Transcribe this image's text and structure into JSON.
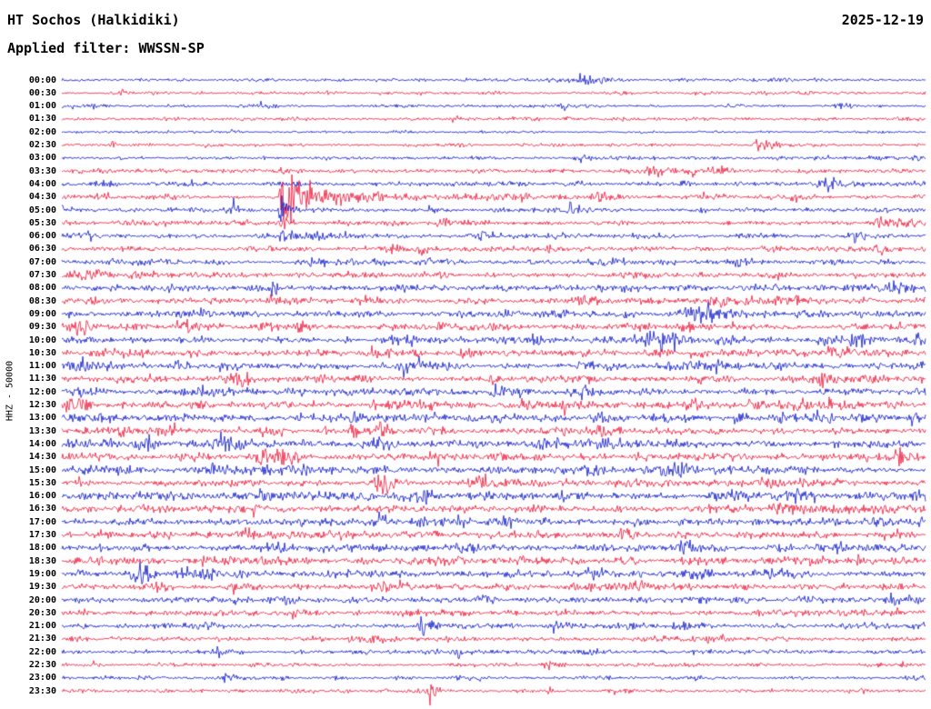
{
  "header": {
    "station": "HT Sochos (Halkidiki)",
    "date": "2025-12-19",
    "filter_line": "Applied filter: WWSSN-SP"
  },
  "chart_data": {
    "type": "line",
    "subtype": "helicorder-seismogram",
    "title": "HT Sochos (Halkidiki)",
    "date": "2025-12-19",
    "filter": "WWSSN-SP",
    "channel_scale": "HHZ - 50000",
    "x_axis": {
      "minutes_per_line": 30,
      "lines": 48,
      "start": "00:00",
      "end": "24:00"
    },
    "legend": "alternating trace colors per half-hour line",
    "colors": {
      "blue": "#0a14c8",
      "red": "#ee1437",
      "text": "#000000",
      "background": "#ffffff"
    },
    "event_format": [
      "x_fraction_of_line",
      "peak_amplitude_px",
      "rise_px",
      "decay_px"
    ],
    "notable_events": [
      {
        "line": "00:00",
        "x": 0.602,
        "desc": "small local event"
      },
      {
        "line": "02:30",
        "x": 0.807,
        "desc": "small burst"
      },
      {
        "line": "04:30",
        "x": 0.255,
        "desc": "large clipped event with long coda"
      },
      {
        "line": "05:00",
        "x": 0.255,
        "desc": "aftershock spike"
      },
      {
        "line": "09:00",
        "x": 0.739,
        "desc": "emergent burst"
      },
      {
        "line": "21:00",
        "x": 0.418,
        "desc": "sharp spike"
      },
      {
        "line": "23:30",
        "x": 0.428,
        "desc": "sharp spike"
      }
    ],
    "rows": [
      {
        "t": "00:00",
        "c": "blue",
        "n": 1.6,
        "e": [
          [
            0.602,
            10,
            3,
            20
          ]
        ]
      },
      {
        "t": "00:30",
        "c": "red",
        "n": 1.6,
        "e": [
          [
            0.065,
            4,
            4,
            10
          ]
        ]
      },
      {
        "t": "01:00",
        "c": "blue",
        "n": 1.6,
        "e": [
          [
            0.58,
            3.5,
            4,
            10
          ]
        ]
      },
      {
        "t": "01:30",
        "c": "red",
        "n": 1.7,
        "e": [
          [
            0.455,
            3,
            4,
            8
          ],
          [
            0.585,
            3,
            3,
            8
          ]
        ]
      },
      {
        "t": "02:00",
        "c": "blue",
        "n": 1.4,
        "e": [
          [
            0.39,
            2.5,
            3,
            8
          ]
        ]
      },
      {
        "t": "02:30",
        "c": "red",
        "n": 1.7,
        "e": [
          [
            0.807,
            8,
            3,
            16
          ],
          [
            0.06,
            3,
            3,
            8
          ]
        ]
      },
      {
        "t": "03:00",
        "c": "blue",
        "n": 2.0,
        "e": [
          [
            0.6,
            3.5,
            4,
            10
          ]
        ]
      },
      {
        "t": "03:30",
        "c": "red",
        "n": 2.4,
        "e": [
          [
            0.255,
            4,
            4,
            10
          ],
          [
            0.685,
            5,
            5,
            14
          ],
          [
            0.73,
            4,
            4,
            10
          ]
        ]
      },
      {
        "t": "04:00",
        "c": "blue",
        "n": 2.6,
        "e": [
          [
            0.885,
            7,
            8,
            18
          ],
          [
            0.72,
            4,
            4,
            10
          ]
        ]
      },
      {
        "t": "04:30",
        "c": "red",
        "n": 2.6,
        "e": [
          [
            0.255,
            52,
            2,
            14
          ],
          [
            0.275,
            10,
            8,
            90
          ],
          [
            0.62,
            5,
            5,
            12
          ],
          [
            0.85,
            4,
            4,
            10
          ]
        ]
      },
      {
        "t": "05:00",
        "c": "blue",
        "n": 2.8,
        "e": [
          [
            0.255,
            24,
            2,
            6
          ],
          [
            0.59,
            6,
            4,
            10
          ],
          [
            0.2,
            5,
            4,
            10
          ]
        ]
      },
      {
        "t": "05:30",
        "c": "red",
        "n": 2.9,
        "e": [
          [
            0.118,
            4,
            4,
            8
          ],
          [
            0.255,
            7,
            2,
            6
          ],
          [
            0.944,
            5,
            4,
            10
          ]
        ]
      },
      {
        "t": "06:00",
        "c": "blue",
        "n": 2.9,
        "e": [
          [
            0.03,
            4,
            3,
            8
          ],
          [
            0.255,
            6,
            2,
            5
          ],
          [
            0.486,
            4,
            3,
            8
          ],
          [
            0.918,
            5,
            4,
            10
          ]
        ]
      },
      {
        "t": "06:30",
        "c": "red",
        "n": 3.0,
        "e": [
          [
            0.381,
            6,
            5,
            12
          ],
          [
            0.565,
            4,
            4,
            8
          ],
          [
            0.944,
            6,
            4,
            10
          ]
        ]
      },
      {
        "t": "07:00",
        "c": "blue",
        "n": 3.0,
        "e": [
          [
            0.055,
            4,
            4,
            8
          ],
          [
            0.292,
            4,
            4,
            8
          ],
          [
            0.79,
            5,
            4,
            10
          ]
        ]
      },
      {
        "t": "07:30",
        "c": "red",
        "n": 3.2,
        "e": [
          [
            0.013,
            4,
            4,
            8
          ],
          [
            0.823,
            5,
            4,
            10
          ]
        ]
      },
      {
        "t": "08:00",
        "c": "blue",
        "n": 3.6,
        "e": [
          [
            0.244,
            5,
            4,
            10
          ],
          [
            0.96,
            7,
            6,
            14
          ]
        ]
      },
      {
        "t": "08:30",
        "c": "red",
        "n": 3.9,
        "e": [
          [
            0.039,
            5,
            4,
            8
          ],
          [
            0.244,
            5,
            4,
            8
          ],
          [
            0.35,
            5,
            4,
            8
          ]
        ]
      },
      {
        "t": "09:00",
        "c": "blue",
        "n": 3.9,
        "e": [
          [
            0.739,
            11,
            10,
            26
          ],
          [
            0.655,
            5,
            4,
            8
          ]
        ]
      },
      {
        "t": "09:30",
        "c": "red",
        "n": 3.9,
        "e": [
          [
            0.139,
            6,
            4,
            10
          ]
        ]
      },
      {
        "t": "10:00",
        "c": "blue",
        "n": 4.2,
        "e": [
          [
            0.544,
            6,
            4,
            10
          ],
          [
            0.686,
            6,
            4,
            10
          ],
          [
            0.77,
            6,
            4,
            10
          ]
        ]
      },
      {
        "t": "10:30",
        "c": "red",
        "n": 4.2,
        "e": [
          [
            0.365,
            6,
            4,
            10
          ],
          [
            0.465,
            6,
            4,
            10
          ],
          [
            0.891,
            5,
            4,
            10
          ]
        ]
      },
      {
        "t": "11:00",
        "c": "blue",
        "n": 4.2,
        "e": [
          [
            0.397,
            7,
            4,
            10
          ],
          [
            0.602,
            5,
            4,
            10
          ]
        ]
      },
      {
        "t": "11:30",
        "c": "red",
        "n": 4.2,
        "e": [
          [
            0.497,
            5,
            4,
            10
          ],
          [
            0.881,
            5,
            4,
            10
          ]
        ]
      },
      {
        "t": "12:00",
        "c": "blue",
        "n": 4.2,
        "e": [
          [
            0.16,
            5,
            4,
            10
          ],
          [
            0.502,
            6,
            4,
            10
          ]
        ]
      },
      {
        "t": "12:30",
        "c": "red",
        "n": 4.4,
        "e": [
          [
            0.36,
            6,
            4,
            10
          ],
          [
            0.728,
            6,
            4,
            10
          ],
          [
            0.802,
            7,
            4,
            10
          ],
          [
            0.891,
            6,
            4,
            10
          ]
        ]
      },
      {
        "t": "13:00",
        "c": "blue",
        "n": 4.4,
        "e": [
          [
            0.339,
            6,
            4,
            10
          ],
          [
            0.781,
            6,
            4,
            10
          ],
          [
            0.834,
            5,
            4,
            10
          ]
        ]
      },
      {
        "t": "13:30",
        "c": "red",
        "n": 4.2,
        "e": [
          [
            0.234,
            5,
            4,
            10
          ],
          [
            0.334,
            6,
            4,
            10
          ]
        ]
      },
      {
        "t": "14:00",
        "c": "blue",
        "n": 4.4,
        "e": [
          [
            0.186,
            7,
            4,
            12
          ]
        ]
      },
      {
        "t": "14:30",
        "c": "red",
        "n": 4.4,
        "e": [
          [
            0.965,
            6,
            4,
            10
          ]
        ]
      },
      {
        "t": "15:00",
        "c": "blue",
        "n": 4.4,
        "e": [
          [
            0.176,
            7,
            4,
            12
          ],
          [
            0.613,
            6,
            4,
            10
          ],
          [
            0.692,
            6,
            4,
            10
          ]
        ]
      },
      {
        "t": "15:30",
        "c": "red",
        "n": 4.2,
        "e": [
          [
            0.371,
            6,
            4,
            10
          ],
          [
            0.813,
            6,
            4,
            10
          ]
        ]
      },
      {
        "t": "16:00",
        "c": "blue",
        "n": 4.4,
        "e": [
          [
            0.413,
            7,
            4,
            12
          ],
          [
            0.581,
            6,
            4,
            10
          ],
          [
            0.75,
            6,
            4,
            10
          ]
        ]
      },
      {
        "t": "16:30",
        "c": "red",
        "n": 4.2,
        "e": [
          [
            0.855,
            6,
            4,
            10
          ]
        ]
      },
      {
        "t": "17:00",
        "c": "blue",
        "n": 4.2,
        "e": [
          [
            0.413,
            6,
            4,
            10
          ],
          [
            0.518,
            5,
            4,
            10
          ]
        ]
      },
      {
        "t": "17:30",
        "c": "red",
        "n": 4.2,
        "e": [
          [
            0.207,
            6,
            4,
            10
          ],
          [
            0.65,
            7,
            4,
            12
          ]
        ]
      },
      {
        "t": "18:00",
        "c": "blue",
        "n": 4.2,
        "e": [
          [
            0.244,
            6,
            4,
            10
          ],
          [
            0.718,
            6,
            4,
            10
          ],
          [
            0.897,
            6,
            4,
            10
          ]
        ]
      },
      {
        "t": "18:30",
        "c": "red",
        "n": 3.9,
        "e": [
          [
            0.018,
            5,
            4,
            10
          ]
        ]
      },
      {
        "t": "19:00",
        "c": "blue",
        "n": 3.9,
        "e": [
          [
            0.086,
            6,
            4,
            10
          ],
          [
            0.518,
            5,
            4,
            10
          ],
          [
            0.613,
            6,
            4,
            10
          ]
        ]
      },
      {
        "t": "19:30",
        "c": "red",
        "n": 3.6,
        "e": [
          [
            0.392,
            5,
            4,
            10
          ]
        ]
      },
      {
        "t": "20:00",
        "c": "blue",
        "n": 3.4,
        "e": [
          [
            0.486,
            6,
            4,
            10
          ],
          [
            0.96,
            6,
            4,
            10
          ]
        ]
      },
      {
        "t": "20:30",
        "c": "red",
        "n": 3.2,
        "e": [
          [
            0.186,
            5,
            4,
            10
          ],
          [
            0.265,
            5,
            4,
            10
          ]
        ]
      },
      {
        "t": "21:00",
        "c": "blue",
        "n": 3.0,
        "e": [
          [
            0.418,
            14,
            3,
            8
          ],
          [
            0.571,
            5,
            4,
            10
          ]
        ]
      },
      {
        "t": "21:30",
        "c": "red",
        "n": 2.7,
        "e": [
          [
            0.365,
            6,
            4,
            10
          ]
        ]
      },
      {
        "t": "22:00",
        "c": "blue",
        "n": 2.4,
        "e": [
          [
            0.181,
            4,
            4,
            8
          ],
          [
            0.46,
            7,
            3,
            8
          ]
        ]
      },
      {
        "t": "22:30",
        "c": "red",
        "n": 2.2,
        "e": [
          [
            0.565,
            4,
            4,
            8
          ]
        ]
      },
      {
        "t": "23:00",
        "c": "blue",
        "n": 2.0,
        "e": [
          [
            0.192,
            4,
            4,
            8
          ],
          [
            0.318,
            4,
            4,
            8
          ]
        ]
      },
      {
        "t": "23:30",
        "c": "red",
        "n": 2.0,
        "e": [
          [
            0.428,
            20,
            2,
            6
          ],
          [
            0.565,
            3,
            3,
            8
          ]
        ]
      }
    ]
  }
}
